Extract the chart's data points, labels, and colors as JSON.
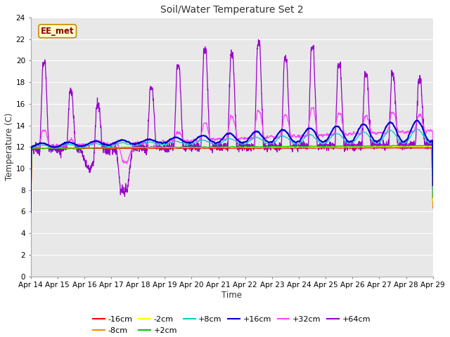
{
  "title": "Soil/Water Temperature Set 2",
  "xlabel": "Time",
  "ylabel": "Temperature (C)",
  "ylim": [
    0,
    24
  ],
  "yticks": [
    0,
    2,
    4,
    6,
    8,
    10,
    12,
    14,
    16,
    18,
    20,
    22,
    24
  ],
  "xlabels": [
    "Apr 14",
    "Apr 15",
    "Apr 16",
    "Apr 17",
    "Apr 18",
    "Apr 19",
    "Apr 20",
    "Apr 21",
    "Apr 22",
    "Apr 23",
    "Apr 24",
    "Apr 25",
    "Apr 26",
    "Apr 27",
    "Apr 28",
    "Apr 29"
  ],
  "series_colors": {
    "-16cm": "#ff0000",
    "-8cm": "#ff8800",
    "-2cm": "#ffff00",
    "+2cm": "#00cc00",
    "+8cm": "#00cccc",
    "+16cm": "#0000cc",
    "+32cm": "#ff44ff",
    "+64cm": "#9900cc"
  },
  "watermark_text": "EE_met",
  "watermark_bg": "#ffffcc",
  "watermark_border": "#cc8800",
  "watermark_fg": "#880000",
  "fig_bg": "#ffffff",
  "plot_bg": "#e8e8e8",
  "grid_color": "#ffffff"
}
